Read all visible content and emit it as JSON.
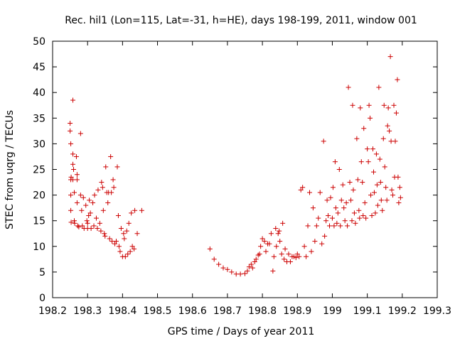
{
  "chart_data": {
    "type": "scatter",
    "title": "Rec. hil1 (Lon=115, Lat=-31, h=HE), days 198-199, 2011, window 001",
    "xlabel": "GPS time / Days of year 2011",
    "ylabel": "STEC from uqrg / TECUs",
    "xlim": [
      198.2,
      199.3
    ],
    "ylim": [
      0,
      50
    ],
    "xticks": [
      198.2,
      198.3,
      198.4,
      198.5,
      198.6,
      198.7,
      198.8,
      198.9,
      199,
      199.1,
      199.2,
      199.3
    ],
    "xtick_labels": [
      "198.2",
      "198.3",
      "198.4",
      "198.5",
      "198.6",
      "198.7",
      "198.8",
      "198.9",
      "199",
      "199.1",
      "199.2",
      "199.3"
    ],
    "yticks": [
      0,
      5,
      10,
      15,
      20,
      25,
      30,
      35,
      40,
      45,
      50
    ],
    "ytick_labels": [
      "0",
      "5",
      "10",
      "15",
      "20",
      "25",
      "30",
      "35",
      "40",
      "45",
      "50"
    ],
    "grid": false,
    "marker": "+",
    "marker_color": "#cc0000",
    "points": [
      [
        198.25,
        34.0
      ],
      [
        198.25,
        32.5
      ],
      [
        198.252,
        30.0
      ],
      [
        198.252,
        23.0
      ],
      [
        198.253,
        23.5
      ],
      [
        198.252,
        20.0
      ],
      [
        198.252,
        17.0
      ],
      [
        198.253,
        14.7
      ],
      [
        198.258,
        38.5
      ],
      [
        198.258,
        28.0
      ],
      [
        198.258,
        26.0
      ],
      [
        198.26,
        25.0
      ],
      [
        198.258,
        23.0
      ],
      [
        198.262,
        20.5
      ],
      [
        198.262,
        15.0
      ],
      [
        198.263,
        14.5
      ],
      [
        198.268,
        27.5
      ],
      [
        198.27,
        24.0
      ],
      [
        198.27,
        23.0
      ],
      [
        198.27,
        18.5
      ],
      [
        198.272,
        14.0
      ],
      [
        198.275,
        13.8
      ],
      [
        198.28,
        32.0
      ],
      [
        198.28,
        20.0
      ],
      [
        198.283,
        17.0
      ],
      [
        198.285,
        14.0
      ],
      [
        198.288,
        19.5
      ],
      [
        198.29,
        13.5
      ],
      [
        198.295,
        18.0
      ],
      [
        198.298,
        15.0
      ],
      [
        198.3,
        14.5
      ],
      [
        198.3,
        13.5
      ],
      [
        198.303,
        16.0
      ],
      [
        198.305,
        19.0
      ],
      [
        198.308,
        16.5
      ],
      [
        198.31,
        13.5
      ],
      [
        198.315,
        18.5
      ],
      [
        198.318,
        14.0
      ],
      [
        198.32,
        20.0
      ],
      [
        198.325,
        15.5
      ],
      [
        198.328,
        13.5
      ],
      [
        198.33,
        21.0
      ],
      [
        198.335,
        14.5
      ],
      [
        198.338,
        13.0
      ],
      [
        198.34,
        22.5
      ],
      [
        198.343,
        21.5
      ],
      [
        198.345,
        17.0
      ],
      [
        198.348,
        12.5
      ],
      [
        198.35,
        12.0
      ],
      [
        198.352,
        25.5
      ],
      [
        198.355,
        20.5
      ],
      [
        198.358,
        18.5
      ],
      [
        198.36,
        20.5
      ],
      [
        198.363,
        11.5
      ],
      [
        198.366,
        27.5
      ],
      [
        198.368,
        20.5
      ],
      [
        198.37,
        11.0
      ],
      [
        198.373,
        23.0
      ],
      [
        198.375,
        21.5
      ],
      [
        198.378,
        10.5
      ],
      [
        198.382,
        11.0
      ],
      [
        198.385,
        25.5
      ],
      [
        198.388,
        16.0
      ],
      [
        198.39,
        10.0
      ],
      [
        198.393,
        9.0
      ],
      [
        198.396,
        13.5
      ],
      [
        198.4,
        8.0
      ],
      [
        198.403,
        12.5
      ],
      [
        198.405,
        11.5
      ],
      [
        198.408,
        8.0
      ],
      [
        198.412,
        13.0
      ],
      [
        198.415,
        8.5
      ],
      [
        198.418,
        14.5
      ],
      [
        198.422,
        9.0
      ],
      [
        198.425,
        16.5
      ],
      [
        198.428,
        10.0
      ],
      [
        198.433,
        9.5
      ],
      [
        198.435,
        17.0
      ],
      [
        198.442,
        12.5
      ],
      [
        198.455,
        17.0
      ],
      [
        198.65,
        9.5
      ],
      [
        198.662,
        7.5
      ],
      [
        198.675,
        6.5
      ],
      [
        198.688,
        5.8
      ],
      [
        198.7,
        5.5
      ],
      [
        198.712,
        5.0
      ],
      [
        198.725,
        4.6
      ],
      [
        198.737,
        4.6
      ],
      [
        198.75,
        4.7
      ],
      [
        198.757,
        5.2
      ],
      [
        198.762,
        6.0
      ],
      [
        198.768,
        6.5
      ],
      [
        198.772,
        5.8
      ],
      [
        198.778,
        7.0
      ],
      [
        198.782,
        7.5
      ],
      [
        198.788,
        8.3
      ],
      [
        198.792,
        8.5
      ],
      [
        198.795,
        10.0
      ],
      [
        198.8,
        11.5
      ],
      [
        198.806,
        11.0
      ],
      [
        198.81,
        9.0
      ],
      [
        198.815,
        10.5
      ],
      [
        198.82,
        10.5
      ],
      [
        198.825,
        12.5
      ],
      [
        198.83,
        5.2
      ],
      [
        198.833,
        8.0
      ],
      [
        198.838,
        13.5
      ],
      [
        198.84,
        10.0
      ],
      [
        198.845,
        12.5
      ],
      [
        198.848,
        13.0
      ],
      [
        198.85,
        11.0
      ],
      [
        198.855,
        8.5
      ],
      [
        198.858,
        14.5
      ],
      [
        198.862,
        7.5
      ],
      [
        198.865,
        9.5
      ],
      [
        198.87,
        7.0
      ],
      [
        198.875,
        8.5
      ],
      [
        198.88,
        7.0
      ],
      [
        198.885,
        8.0
      ],
      [
        198.89,
        8.0
      ],
      [
        198.896,
        7.8
      ],
      [
        198.9,
        8.5
      ],
      [
        198.905,
        8.0
      ],
      [
        198.91,
        21.0
      ],
      [
        198.915,
        21.5
      ],
      [
        198.92,
        10.0
      ],
      [
        198.925,
        8.0
      ],
      [
        198.93,
        14.0
      ],
      [
        198.935,
        20.5
      ],
      [
        198.94,
        9.0
      ],
      [
        198.945,
        17.5
      ],
      [
        198.95,
        11.0
      ],
      [
        198.955,
        14.0
      ],
      [
        198.96,
        15.5
      ],
      [
        198.965,
        20.5
      ],
      [
        198.97,
        10.5
      ],
      [
        198.975,
        30.5
      ],
      [
        198.978,
        12.0
      ],
      [
        198.982,
        15.0
      ],
      [
        198.985,
        19.0
      ],
      [
        198.988,
        16.0
      ],
      [
        198.992,
        14.0
      ],
      [
        198.995,
        19.5
      ],
      [
        199.0,
        15.5
      ],
      [
        199.002,
        21.5
      ],
      [
        199.005,
        14.0
      ],
      [
        199.008,
        26.5
      ],
      [
        199.01,
        17.5
      ],
      [
        199.013,
        14.5
      ],
      [
        199.016,
        16.5
      ],
      [
        199.02,
        25.0
      ],
      [
        199.023,
        14.0
      ],
      [
        199.026,
        19.0
      ],
      [
        199.03,
        22.0
      ],
      [
        199.033,
        17.5
      ],
      [
        199.036,
        15.0
      ],
      [
        199.04,
        18.5
      ],
      [
        199.043,
        14.0
      ],
      [
        199.046,
        41.0
      ],
      [
        199.05,
        22.5
      ],
      [
        199.053,
        19.0
      ],
      [
        199.056,
        15.0
      ],
      [
        199.058,
        37.5
      ],
      [
        199.06,
        21.0
      ],
      [
        199.063,
        16.5
      ],
      [
        199.066,
        14.5
      ],
      [
        199.07,
        31.0
      ],
      [
        199.073,
        23.0
      ],
      [
        199.076,
        17.0
      ],
      [
        199.078,
        15.5
      ],
      [
        199.08,
        37.0
      ],
      [
        199.083,
        26.5
      ],
      [
        199.086,
        22.5
      ],
      [
        199.088,
        16.0
      ],
      [
        199.09,
        33.0
      ],
      [
        199.093,
        18.5
      ],
      [
        199.096,
        15.5
      ],
      [
        199.1,
        29.0
      ],
      [
        199.103,
        26.5
      ],
      [
        199.105,
        37.5
      ],
      [
        199.108,
        35.0
      ],
      [
        199.11,
        20.0
      ],
      [
        199.113,
        16.0
      ],
      [
        199.116,
        29.0
      ],
      [
        199.118,
        24.5
      ],
      [
        199.12,
        20.5
      ],
      [
        199.123,
        16.5
      ],
      [
        199.126,
        28.0
      ],
      [
        199.128,
        22.0
      ],
      [
        199.13,
        18.0
      ],
      [
        199.133,
        41.0
      ],
      [
        199.136,
        27.0
      ],
      [
        199.138,
        22.5
      ],
      [
        199.14,
        19.0
      ],
      [
        199.143,
        17.0
      ],
      [
        199.146,
        31.0
      ],
      [
        199.148,
        37.5
      ],
      [
        199.15,
        25.5
      ],
      [
        199.153,
        21.5
      ],
      [
        199.156,
        19.0
      ],
      [
        199.158,
        33.5
      ],
      [
        199.16,
        37.0
      ],
      [
        199.163,
        32.5
      ],
      [
        199.166,
        47.0
      ],
      [
        199.168,
        30.5
      ],
      [
        199.17,
        21.0
      ],
      [
        199.173,
        20.0
      ],
      [
        199.176,
        37.5
      ],
      [
        199.178,
        23.5
      ],
      [
        199.18,
        30.5
      ],
      [
        199.183,
        36.0
      ],
      [
        199.186,
        42.5
      ],
      [
        199.188,
        23.5
      ],
      [
        199.19,
        18.5
      ],
      [
        199.193,
        21.5
      ],
      [
        199.195,
        19.5
      ]
    ]
  }
}
